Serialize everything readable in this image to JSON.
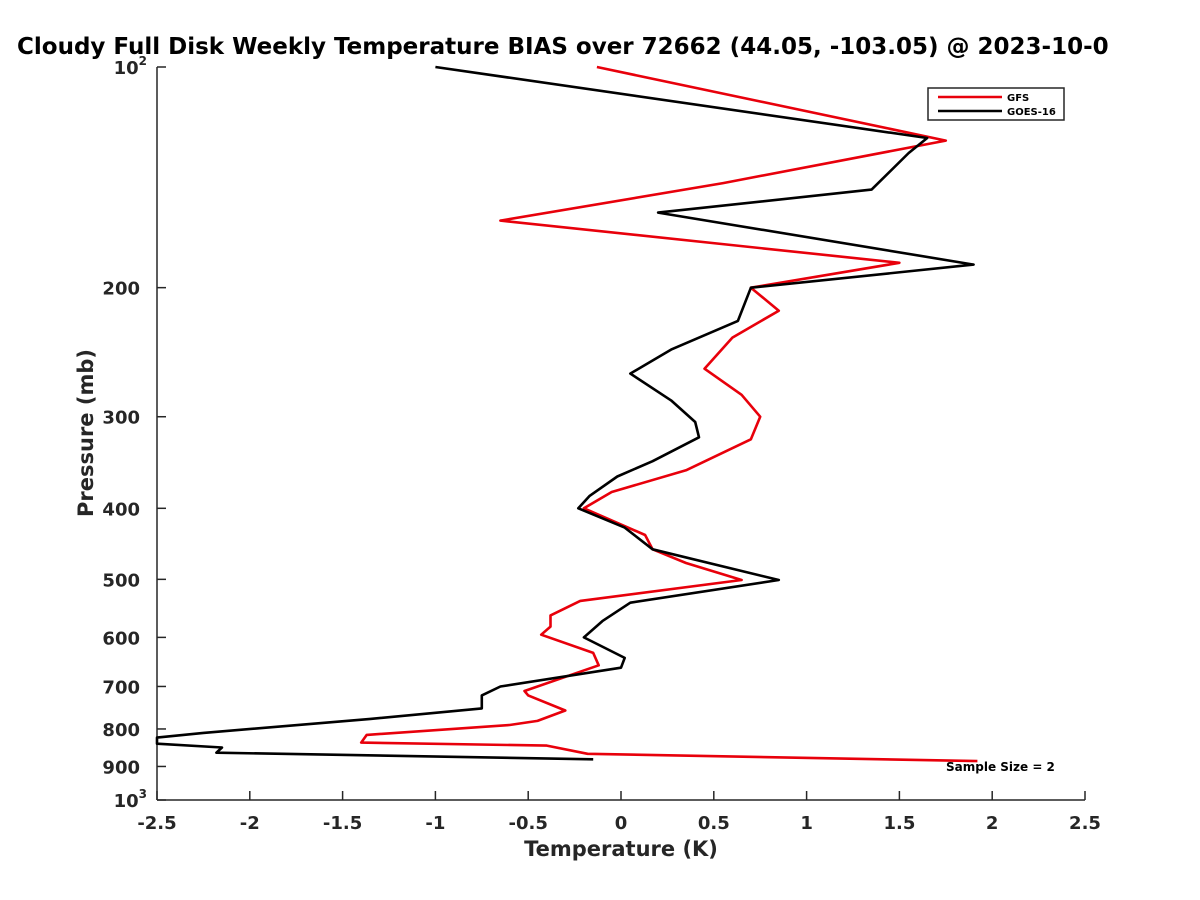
{
  "chart_data": {
    "type": "line",
    "title": "Cloudy Full Disk Weekly Temperature BIAS over 72662 (44.05, -103.05) @ 2023-10-0",
    "xlabel": "Temperature (K)",
    "ylabel": "Pressure (mb)",
    "xlim": [
      -2.5,
      2.5
    ],
    "ylim": [
      100,
      1000
    ],
    "y_scale": "log",
    "y_reversed": true,
    "grid": false,
    "legend_position": "top-right",
    "x_ticks": [
      "-2.5",
      "-2",
      "-1.5",
      "-1",
      "-0.5",
      "0",
      "0.5",
      "1",
      "1.5",
      "2",
      "2.5"
    ],
    "y_ticks": [
      {
        "value": 100,
        "base": "10",
        "exp": "2"
      },
      {
        "value": 200,
        "label": "200"
      },
      {
        "value": 300,
        "label": "300"
      },
      {
        "value": 400,
        "label": "400"
      },
      {
        "value": 500,
        "label": "500"
      },
      {
        "value": 600,
        "label": "600"
      },
      {
        "value": 700,
        "label": "700"
      },
      {
        "value": 800,
        "label": "800"
      },
      {
        "value": 900,
        "label": "900"
      },
      {
        "value": 1000,
        "base": "10",
        "exp": "3"
      }
    ],
    "series": [
      {
        "name": "GFS",
        "color": "#e8000b",
        "points": [
          [
            -0.13,
            100
          ],
          [
            1.75,
            126
          ],
          [
            0.55,
            144
          ],
          [
            -0.65,
            162
          ],
          [
            1.5,
            185
          ],
          [
            0.7,
            200
          ],
          [
            0.85,
            215
          ],
          [
            0.6,
            234
          ],
          [
            0.45,
            258
          ],
          [
            0.65,
            280
          ],
          [
            0.75,
            300
          ],
          [
            0.7,
            322
          ],
          [
            0.35,
            355
          ],
          [
            -0.05,
            380
          ],
          [
            -0.2,
            400
          ],
          [
            0.13,
            435
          ],
          [
            0.17,
            455
          ],
          [
            0.35,
            475
          ],
          [
            0.65,
            501
          ],
          [
            -0.22,
            535
          ],
          [
            -0.38,
            560
          ],
          [
            -0.38,
            580
          ],
          [
            -0.43,
            595
          ],
          [
            -0.15,
            630
          ],
          [
            -0.12,
            655
          ],
          [
            -0.52,
            710
          ],
          [
            -0.5,
            720
          ],
          [
            -0.3,
            755
          ],
          [
            -0.45,
            780
          ],
          [
            -0.6,
            790
          ],
          [
            -1.37,
            815
          ],
          [
            -1.4,
            835
          ],
          [
            -0.4,
            843
          ],
          [
            -0.18,
            865
          ],
          [
            1.92,
            885
          ]
        ]
      },
      {
        "name": "GOES-16",
        "color": "#000000",
        "points": [
          [
            -1.0,
            100
          ],
          [
            1.65,
            125
          ],
          [
            1.55,
            131
          ],
          [
            1.35,
            147
          ],
          [
            0.2,
            158
          ],
          [
            1.9,
            186
          ],
          [
            0.7,
            200
          ],
          [
            0.63,
            222
          ],
          [
            0.27,
            243
          ],
          [
            0.05,
            262
          ],
          [
            0.27,
            285
          ],
          [
            0.4,
            305
          ],
          [
            0.42,
            320
          ],
          [
            0.17,
            345
          ],
          [
            -0.02,
            362
          ],
          [
            -0.17,
            385
          ],
          [
            -0.23,
            400
          ],
          [
            0.02,
            425
          ],
          [
            0.17,
            455
          ],
          [
            0.85,
            501
          ],
          [
            0.05,
            538
          ],
          [
            -0.1,
            570
          ],
          [
            -0.2,
            600
          ],
          [
            0.02,
            640
          ],
          [
            0.0,
            660
          ],
          [
            -0.65,
            700
          ],
          [
            -0.75,
            720
          ],
          [
            -0.75,
            750
          ],
          [
            -1.35,
            775
          ],
          [
            -2.25,
            810
          ],
          [
            -2.5,
            822
          ],
          [
            -2.5,
            838
          ],
          [
            -2.15,
            848
          ],
          [
            -2.18,
            862
          ],
          [
            -0.15,
            880
          ]
        ]
      }
    ],
    "annotation": "Sample Size = 2"
  }
}
